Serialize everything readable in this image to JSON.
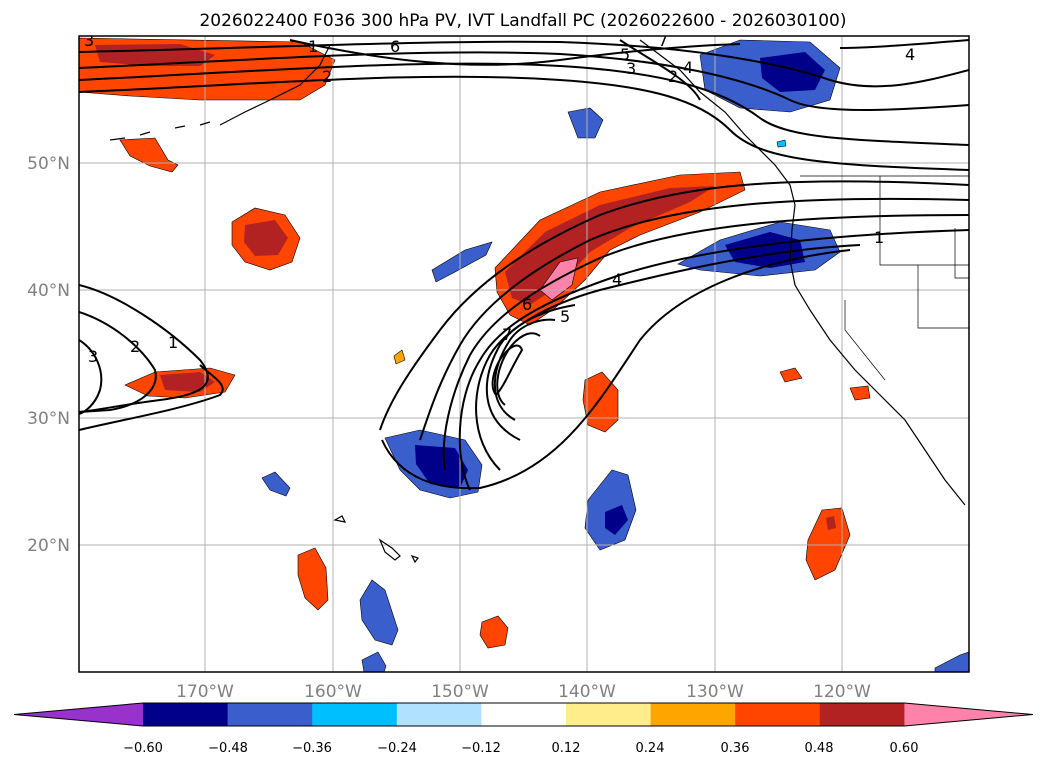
{
  "title": "2026022400 F036 300 hPa PV, IVT Landfall PC (2026022600 - 2026030100)",
  "map": {
    "lon_range": [
      180,
      110
    ],
    "lat_range": [
      10,
      60
    ],
    "lat_labels": [
      "50°N",
      "40°N",
      "30°N",
      "20°N"
    ],
    "lat_values": [
      50,
      40,
      30,
      20
    ],
    "lon_labels": [
      "170°W",
      "160°W",
      "150°W",
      "140°W",
      "130°W",
      "120°W"
    ],
    "lon_values": [
      170,
      160,
      150,
      140,
      130,
      120
    ],
    "gridlines": true,
    "coastline_color": "#000000"
  },
  "colorbar": {
    "tick_labels": [
      "−0.60",
      "−0.48",
      "−0.36",
      "−0.24",
      "−0.12",
      "0.12",
      "0.24",
      "0.36",
      "0.48",
      "0.60"
    ],
    "colors": [
      "#9932cc",
      "#00008b",
      "#3a5fcd",
      "#00bfff",
      "#b0e2ff",
      "#ffffff",
      "#ffec8b",
      "#ffa500",
      "#ff4500",
      "#b22222",
      "#ff82ab"
    ],
    "extend": "both"
  },
  "contour_labels": [
    "1",
    "2",
    "3",
    "4",
    "5",
    "6",
    "7",
    "1",
    "2",
    "3",
    "4",
    "5",
    "6",
    "7",
    "1",
    "2",
    "3",
    "4"
  ]
}
